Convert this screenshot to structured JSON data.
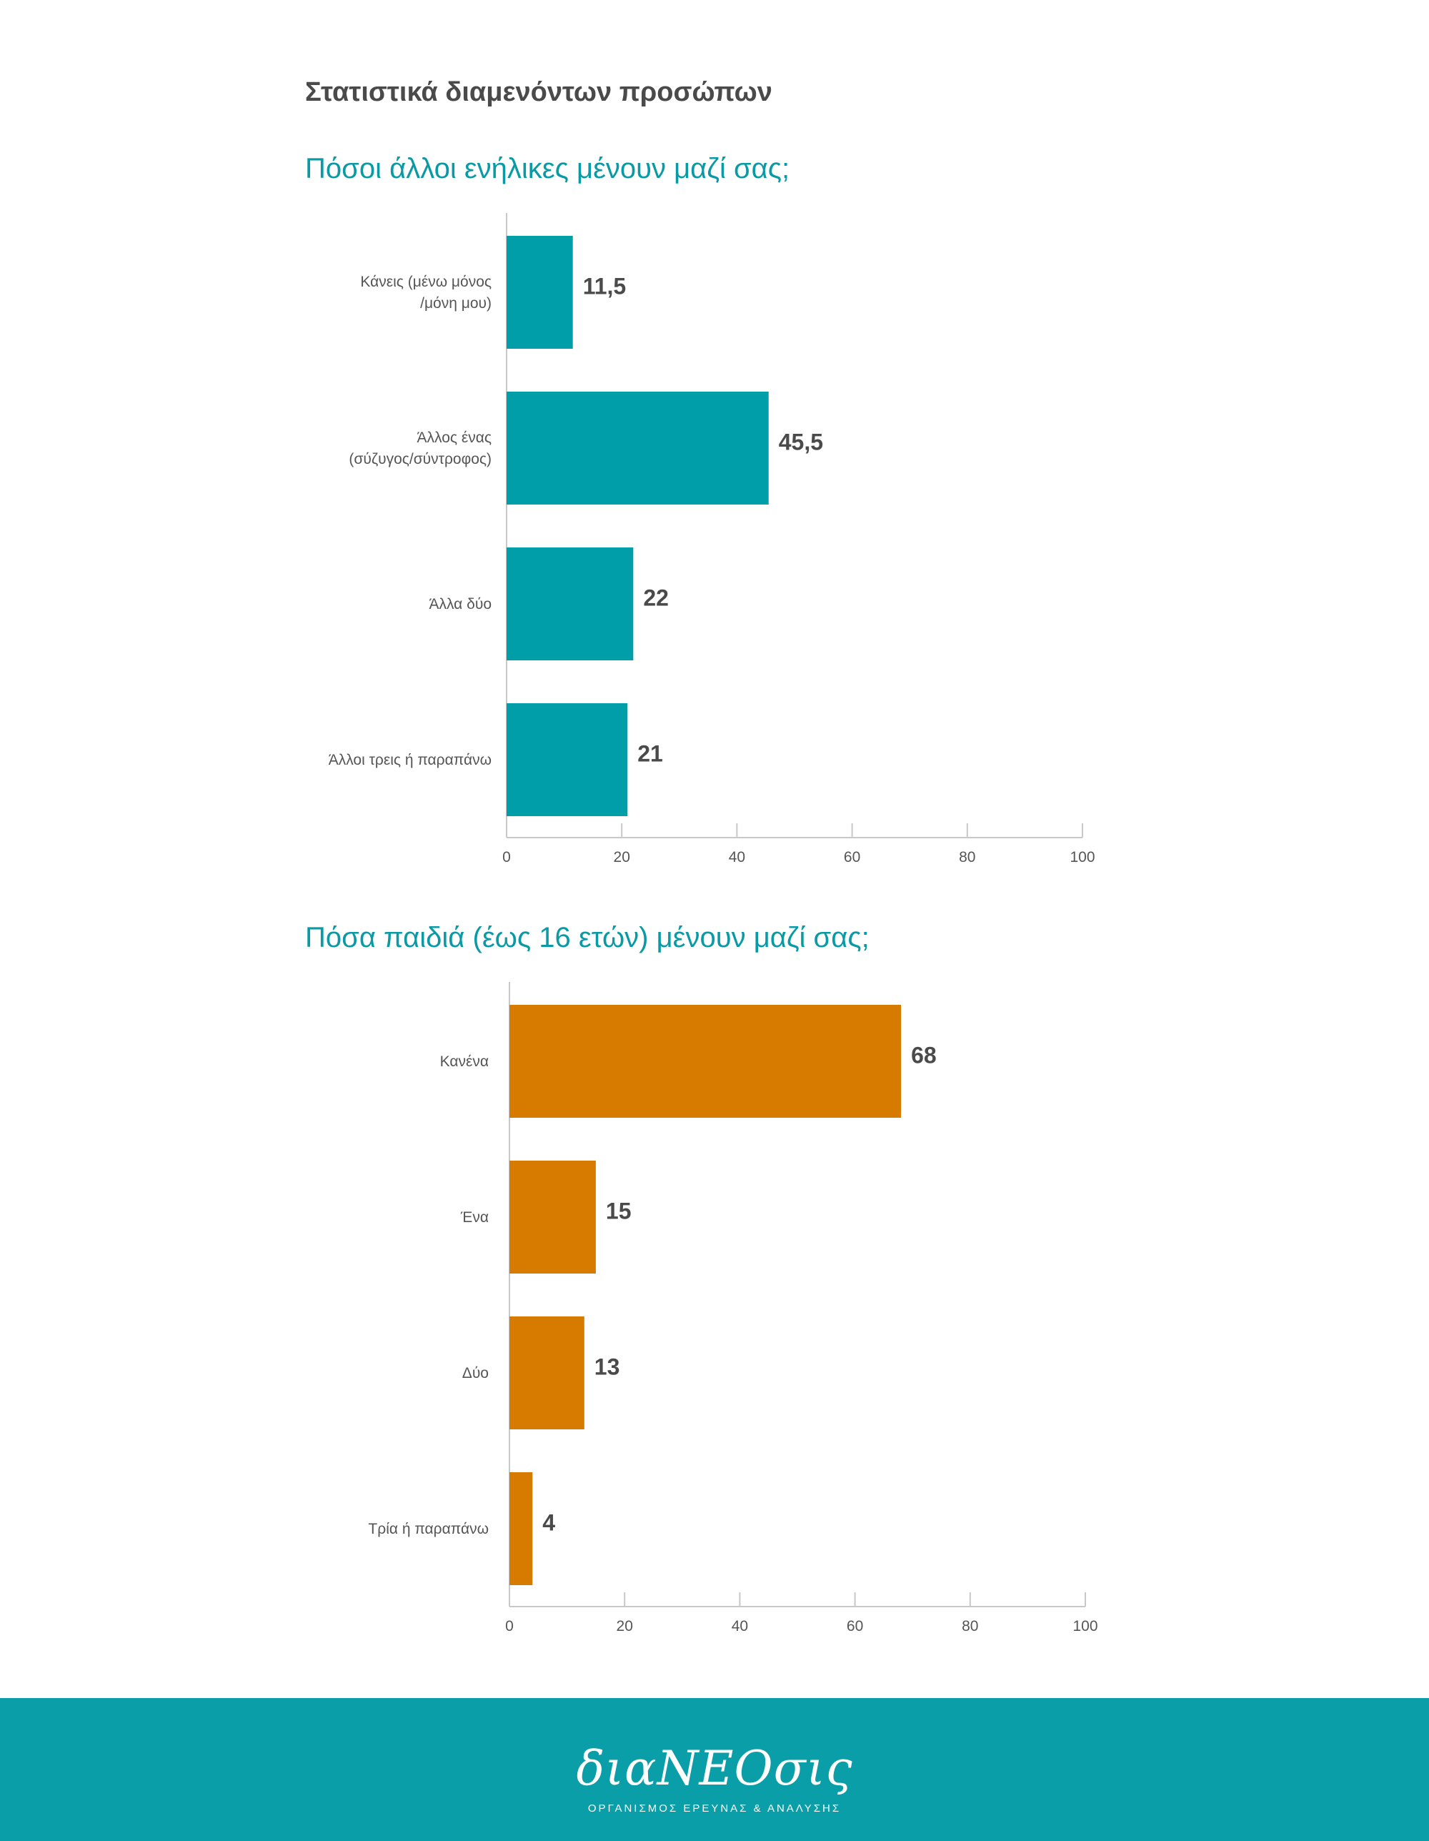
{
  "page": {
    "title": "Στατιστικά διαμενόντων προσώπων"
  },
  "chart_data": [
    {
      "type": "bar",
      "orientation": "horizontal",
      "title": "Πόσοι άλλοι ενήλικες μένουν μαζί σας;",
      "categories": [
        [
          "Κάνεις (μένω μόνος",
          "/μόνη μου)"
        ],
        [
          "Άλλος ένας",
          "(σύζυγος/σύντροφος)"
        ],
        [
          "Άλλα δύο"
        ],
        [
          "Άλλοι τρεις ή παραπάνω"
        ]
      ],
      "values": [
        11.5,
        45.5,
        22,
        21
      ],
      "value_labels": [
        "11,5",
        "45,5",
        "22",
        "21"
      ],
      "xlim": [
        0,
        100
      ],
      "ticks": [
        0,
        20,
        40,
        60,
        80,
        100
      ],
      "color": "#009ea8",
      "grid": false
    },
    {
      "type": "bar",
      "orientation": "horizontal",
      "title": "Πόσα παιδιά (έως 16 ετών) μένουν μαζί σας;",
      "categories": [
        [
          "Κανένα"
        ],
        [
          "Ένα"
        ],
        [
          "Δύο"
        ],
        [
          "Τρία ή παραπάνω"
        ]
      ],
      "values": [
        68,
        15,
        13,
        4
      ],
      "value_labels": [
        "68",
        "15",
        "13",
        "4"
      ],
      "xlim": [
        0,
        100
      ],
      "ticks": [
        0,
        20,
        40,
        60,
        80,
        100
      ],
      "color": "#d67a00",
      "grid": false
    }
  ],
  "footer": {
    "logo": "διαΝΕΟσις",
    "subtitle": "ΟΡΓΑΝΙΣΜΟΣ ΕΡΕΥΝΑΣ & ΑΝΑΛΥΣΗΣ",
    "background": "#0a9ea8"
  }
}
